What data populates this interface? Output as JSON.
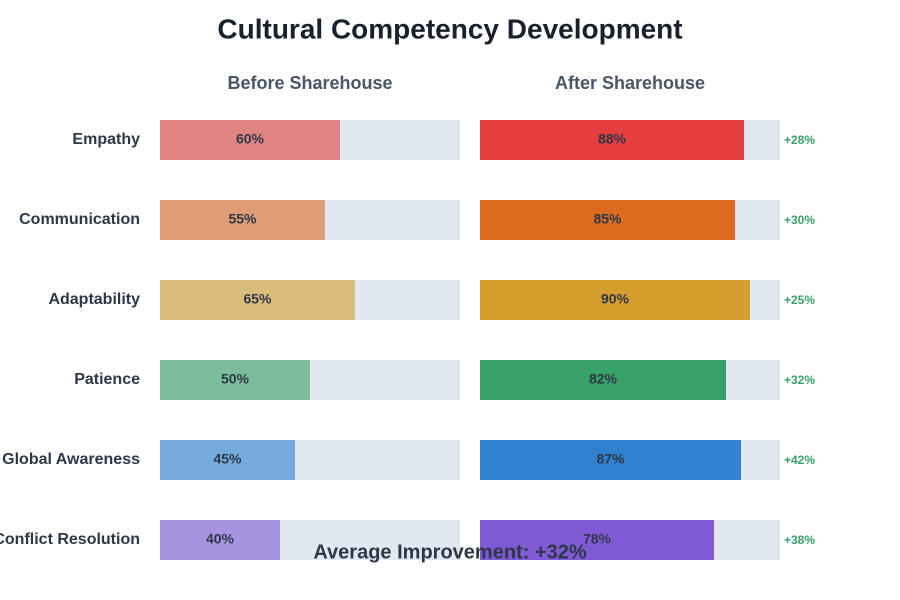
{
  "chart_data": {
    "type": "bar",
    "orientation": "horizontal",
    "title": "Cultural Competency Development",
    "categories": [
      "Empathy",
      "Communication",
      "Adaptability",
      "Patience",
      "Global Awareness",
      "Conflict Resolution"
    ],
    "xlim": [
      0,
      100
    ],
    "track_color": "#e2e8f0",
    "series": [
      {
        "name": "Before Sharehouse",
        "colors": [
          "#e28383",
          "#e09c74",
          "#dbbd7b",
          "#7bbd9b",
          "#77aadc",
          "#a794e0"
        ],
        "values": [
          60,
          55,
          65,
          50,
          45,
          40
        ],
        "value_labels": [
          "60%",
          "55%",
          "65%",
          "50%",
          "45%",
          "40%"
        ]
      },
      {
        "name": "After Sharehouse",
        "colors": [
          "#e53e3e",
          "#dd6b20",
          "#d69e2e",
          "#38a169",
          "#3182ce",
          "#805ad5"
        ],
        "values": [
          88,
          85,
          90,
          82,
          87,
          78
        ],
        "value_labels": [
          "88%",
          "85%",
          "90%",
          "82%",
          "87%",
          "78%"
        ]
      }
    ],
    "improvement_labels": [
      "+28%",
      "+30%",
      "+25%",
      "+32%",
      "+42%",
      "+38%"
    ],
    "improvement_color": "#38a169",
    "annotation": "Average Improvement: +32%"
  }
}
